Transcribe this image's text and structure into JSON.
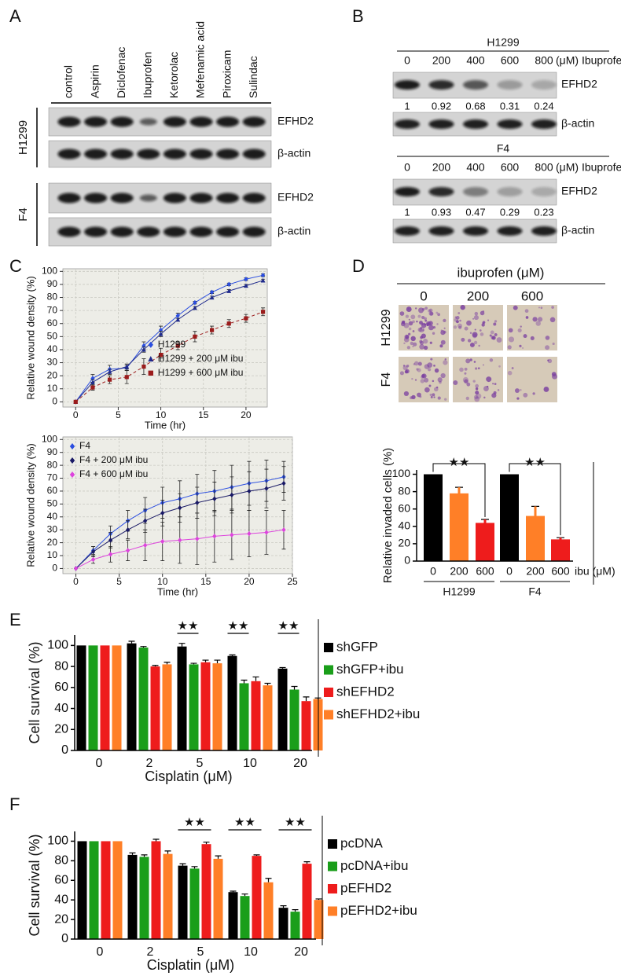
{
  "panel_labels": [
    "A",
    "B",
    "C",
    "D",
    "E",
    "F"
  ],
  "panel_a": {
    "treatments": [
      "control",
      "Aspirin",
      "Diclofenac",
      "Ibuprofen",
      "Ketorolac",
      "Mefenamic acid",
      "Piroxicam",
      "Sulindac"
    ],
    "cell_lines": [
      "H1299",
      "F4"
    ],
    "proteins": [
      "EFHD2",
      "β-actin"
    ]
  },
  "panel_b": {
    "unit": "(μM) Ibuprofen",
    "proteins": [
      "EFHD2",
      "β-actin"
    ],
    "blots": [
      {
        "cell_line": "H1299",
        "doses": [
          0,
          200,
          400,
          600,
          800
        ],
        "ratios": [
          1,
          0.92,
          0.68,
          0.31,
          0.24
        ]
      },
      {
        "cell_line": "F4",
        "doses": [
          0,
          200,
          400,
          600,
          800
        ],
        "ratios": [
          1,
          0.93,
          0.47,
          0.29,
          0.23
        ]
      }
    ]
  },
  "panel_d_images": {
    "title": "ibuprofen (μM)",
    "doses": [
      0,
      200,
      600
    ],
    "cell_lines": [
      "H1299",
      "F4"
    ]
  },
  "chart_data": [
    {
      "type": "line",
      "x_label": "Time (hr)",
      "y_label": "Relative wound density (%)",
      "x": [
        0,
        2,
        4,
        6,
        8,
        10,
        12,
        14,
        16,
        18,
        20,
        22
      ],
      "xlim": [
        -1.5,
        22.5
      ],
      "xticks": [
        0,
        5,
        10,
        15,
        20
      ],
      "ylim": [
        -4,
        102
      ],
      "yticks": [
        0,
        10,
        20,
        30,
        40,
        50,
        60,
        70,
        80,
        90,
        100
      ],
      "grid": true,
      "legend": "center",
      "series": [
        {
          "name": "H1299",
          "color": "#2b4ee0",
          "marker": "diamond",
          "line_style": "solid",
          "values": [
            0,
            18,
            25,
            26,
            43,
            55,
            66,
            76,
            84,
            90,
            94,
            97
          ],
          "errors": [
            0,
            3,
            3,
            2,
            3,
            3,
            2,
            1,
            1,
            1,
            1,
            1
          ]
        },
        {
          "name": "H1299 + 200 μM ibu",
          "color": "#1f2a8c",
          "marker": "triangle",
          "line_style": "solid",
          "values": [
            0,
            15,
            23,
            27,
            40,
            52,
            63,
            72,
            80,
            85,
            89,
            93
          ],
          "errors": [
            0,
            2,
            2,
            2,
            2,
            2,
            1,
            1,
            1,
            1,
            1,
            1
          ]
        },
        {
          "name": "H1299 + 600 μM ibu",
          "color": "#9b1c1c",
          "marker": "square",
          "line_style": "dashed",
          "values": [
            0,
            11,
            17,
            19,
            27,
            36,
            43,
            50,
            55,
            60,
            64,
            69
          ],
          "errors": [
            0,
            2,
            3,
            5,
            6,
            5,
            3,
            4,
            3,
            3,
            3,
            3
          ]
        }
      ]
    },
    {
      "type": "line",
      "x_label": "Time (hr)",
      "y_label": "Relative wound density (%)",
      "x": [
        0,
        2,
        4,
        6,
        8,
        10,
        12,
        14,
        16,
        18,
        20,
        22,
        24
      ],
      "xlim": [
        -1.5,
        25
      ],
      "xticks": [
        0,
        5,
        10,
        15,
        20,
        25
      ],
      "ylim": [
        -4,
        102
      ],
      "yticks": [
        0,
        10,
        20,
        30,
        40,
        50,
        60,
        70,
        80,
        90,
        100
      ],
      "grid": true,
      "legend": "upper left",
      "series": [
        {
          "name": "F4",
          "color": "#2b4ee0",
          "marker": "diamond",
          "line_style": "solid",
          "values": [
            0,
            14,
            27,
            37,
            45,
            51,
            54,
            58,
            60,
            63,
            66,
            68,
            71
          ],
          "errors": [
            0,
            3,
            6,
            8,
            10,
            12,
            14,
            15,
            16,
            17,
            17,
            16,
            12
          ]
        },
        {
          "name": "F4 + 200 μM ibu",
          "color": "#1a1a66",
          "marker": "diamond",
          "line_style": "solid",
          "values": [
            0,
            13,
            22,
            30,
            37,
            43,
            47,
            51,
            54,
            57,
            60,
            62,
            66
          ],
          "errors": [
            0,
            4,
            6,
            7,
            9,
            10,
            11,
            12,
            13,
            14,
            15,
            15,
            13
          ]
        },
        {
          "name": "F4 + 600 μM ibu",
          "color": "#dd44dd",
          "marker": "diamond",
          "line_style": "solid",
          "values": [
            0,
            7,
            11,
            14,
            18,
            21,
            22,
            23,
            25,
            26,
            27,
            28,
            30
          ],
          "errors": [
            0,
            3,
            6,
            8,
            12,
            15,
            18,
            20,
            20,
            19,
            18,
            17,
            15
          ]
        }
      ]
    },
    {
      "type": "bar",
      "y_label": "Relative invaded cells (%)",
      "x_unit": "ibu (μM)",
      "categories": [
        "0",
        "200",
        "600",
        "0",
        "200",
        "600"
      ],
      "groups": [
        "H1299",
        "F4"
      ],
      "values": [
        100,
        78,
        44,
        100,
        52,
        25
      ],
      "errors": [
        0,
        7,
        4,
        0,
        11,
        2
      ],
      "colors": [
        "#000000",
        "#ff7f27",
        "#ee1c1c",
        "#000000",
        "#ff7f27",
        "#ee1c1c"
      ],
      "ylim": [
        0,
        105
      ],
      "yticks": [
        0,
        20,
        40,
        60,
        80,
        100
      ],
      "annotations": [
        "★★",
        "★★"
      ]
    },
    {
      "type": "grouped_bar",
      "x_label": "Cisplatin (μM)",
      "y_label": "Cell survival (%)",
      "categories": [
        "0",
        "2",
        "5",
        "10",
        "20"
      ],
      "ylim": [
        0,
        110
      ],
      "yticks": [
        0,
        20,
        40,
        60,
        80,
        100
      ],
      "legend": "right",
      "annotations": [
        "★★",
        "★★",
        "★★"
      ],
      "series": [
        {
          "name": "shGFP",
          "color": "#000000",
          "values": [
            100,
            102,
            99,
            90,
            78
          ],
          "errors": [
            0,
            2,
            3,
            1,
            1
          ]
        },
        {
          "name": "shGFP+ibu",
          "color": "#1a9e1a",
          "values": [
            100,
            98,
            82,
            64,
            58
          ],
          "errors": [
            0,
            1,
            1,
            3,
            3
          ]
        },
        {
          "name": "shEFHD2",
          "color": "#ee1c1c",
          "values": [
            100,
            80,
            84,
            66,
            47
          ],
          "errors": [
            0,
            1,
            2,
            4,
            4
          ]
        },
        {
          "name": "shEFHD2+ibu",
          "color": "#ff7f27",
          "values": [
            100,
            82,
            83,
            62,
            49
          ],
          "errors": [
            0,
            2,
            3,
            2,
            1
          ]
        }
      ]
    },
    {
      "type": "grouped_bar",
      "x_label": "Cisplatin (μM)",
      "y_label": "Cell survival (%)",
      "categories": [
        "0",
        "2",
        "5",
        "10",
        "20"
      ],
      "ylim": [
        0,
        110
      ],
      "yticks": [
        0,
        20,
        40,
        60,
        80,
        100
      ],
      "legend": "right",
      "annotations": [
        "★★",
        "★★",
        "★★"
      ],
      "series": [
        {
          "name": "pcDNA",
          "color": "#000000",
          "values": [
            100,
            86,
            75,
            48,
            32
          ],
          "errors": [
            0,
            2,
            2,
            1,
            2
          ]
        },
        {
          "name": "pcDNA+ibu",
          "color": "#1a9e1a",
          "values": [
            100,
            84,
            72,
            44,
            28
          ],
          "errors": [
            0,
            2,
            2,
            2,
            2
          ]
        },
        {
          "name": "pEFHD2",
          "color": "#ee1c1c",
          "values": [
            100,
            100,
            97,
            85,
            77
          ],
          "errors": [
            0,
            2,
            2,
            1,
            2
          ]
        },
        {
          "name": "pEFHD2+ibu",
          "color": "#ff7f27",
          "values": [
            100,
            87,
            82,
            58,
            40
          ],
          "errors": [
            0,
            3,
            3,
            4,
            1
          ]
        }
      ]
    }
  ]
}
